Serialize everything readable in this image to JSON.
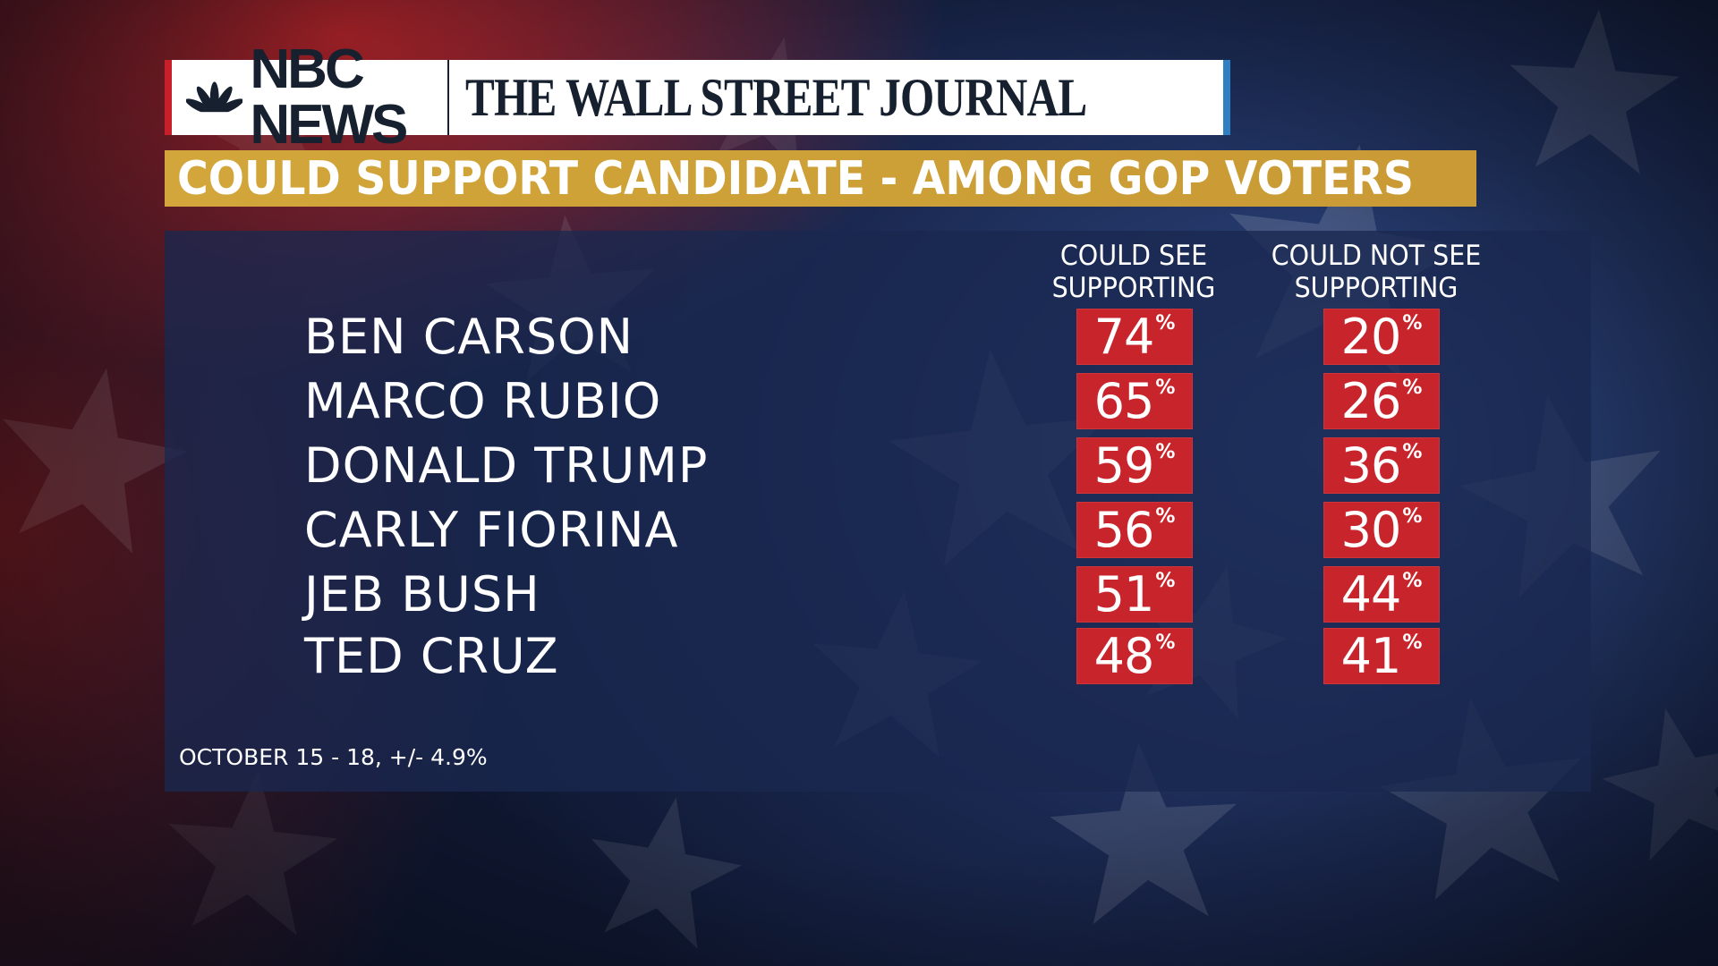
{
  "header": {
    "nbc_logo_text": "NBC NEWS",
    "wsj_logo_text": "THE WALL STREET JOURNAL"
  },
  "title": "COULD SUPPORT CANDIDATE - AMONG GOP VOTERS",
  "footnote": "OCTOBER 15 - 18, +/- 4.9%",
  "colors": {
    "gold": "#d2a63a",
    "cell_red": "#c8242c",
    "panel_navy": "#192850"
  },
  "chart_data": {
    "type": "table",
    "title": "COULD SUPPORT CANDIDATE - AMONG GOP VOTERS",
    "columns": [
      {
        "line1": "COULD SEE",
        "line2": "SUPPORTING"
      },
      {
        "line1": "COULD NOT SEE",
        "line2": "SUPPORTING"
      }
    ],
    "unit": "%",
    "rows": [
      {
        "name": "BEN CARSON",
        "values": [
          "74",
          "20"
        ]
      },
      {
        "name": "MARCO RUBIO",
        "values": [
          "65",
          "26"
        ]
      },
      {
        "name": "DONALD TRUMP",
        "values": [
          "59",
          "36"
        ]
      },
      {
        "name": "CARLY FIORINA",
        "values": [
          "56",
          "30"
        ]
      },
      {
        "name": "JEB BUSH",
        "values": [
          "51",
          "44"
        ]
      },
      {
        "name": "TED CRUZ",
        "values": [
          "48",
          "41"
        ]
      }
    ]
  }
}
